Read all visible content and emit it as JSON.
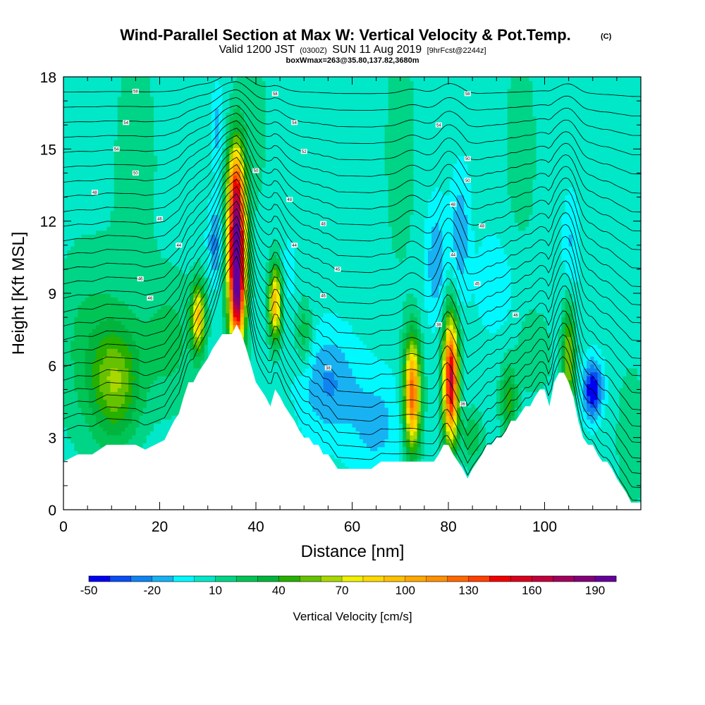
{
  "chart_data": {
    "type": "heatmap",
    "title": "Wind-Parallel Section at Max W: Vertical Velocity & Pot.Temp.",
    "title_suffix": "(C)",
    "subtitle_a": "Valid 1200 JST",
    "subtitle_b": "(0300Z)",
    "subtitle_c": "SUN 11 Aug 2019",
    "subtitle_d": "[9hrFcst@2244z]",
    "subtitle_line3": "boxWmax=263@35.80,137.82,3680m",
    "xlabel": "Distance [nm]",
    "ylabel": "Height [Kft MSL]",
    "xlim": [
      0,
      120
    ],
    "ylim": [
      0,
      18
    ],
    "x_ticks": [
      0,
      20,
      40,
      60,
      80,
      100
    ],
    "y_ticks": [
      0,
      3,
      6,
      9,
      12,
      15,
      18
    ],
    "colorbar": {
      "label": "Vertical Velocity [cm/s]",
      "tick_labels": [
        "-50",
        "-20",
        "10",
        "40",
        "70",
        "100",
        "130",
        "160",
        "190"
      ],
      "tick_values": [
        -50,
        -20,
        10,
        40,
        70,
        100,
        130,
        160,
        190
      ],
      "bins": [
        -50,
        -40,
        -30,
        -20,
        -10,
        0,
        10,
        20,
        30,
        40,
        50,
        60,
        70,
        80,
        90,
        100,
        110,
        120,
        130,
        140,
        150,
        160,
        170,
        180,
        190,
        200
      ],
      "colors": [
        "#0000f0",
        "#0a4cf5",
        "#0f84f0",
        "#18b2f2",
        "#00f8ff",
        "#00e8c8",
        "#00d486",
        "#00c455",
        "#00b43d",
        "#26b000",
        "#66c200",
        "#a8d800",
        "#f0f000",
        "#ffd800",
        "#ffc000",
        "#ffa800",
        "#ff9000",
        "#ff6800",
        "#ff4000",
        "#f00000",
        "#d8001c",
        "#c0003c",
        "#a0005c",
        "#820078",
        "#64009a"
      ]
    },
    "terrain": {
      "x": [
        0,
        1,
        3,
        6,
        9,
        11,
        13,
        15,
        17,
        19,
        21,
        22,
        23,
        24,
        25,
        26,
        27,
        28,
        29,
        30,
        31,
        32,
        33,
        34,
        35,
        36,
        37,
        38,
        39,
        40,
        41,
        42,
        43,
        44,
        45,
        46,
        47,
        48,
        49,
        50,
        51,
        52,
        53,
        54,
        55,
        56,
        57,
        58,
        60,
        62,
        64,
        66,
        68,
        70,
        72,
        74,
        76,
        77,
        78,
        79,
        80,
        81,
        82,
        83,
        84,
        85,
        86,
        87,
        88,
        89,
        90,
        91,
        92,
        93,
        94,
        95,
        96,
        97,
        98,
        99,
        100,
        101,
        102,
        103,
        104,
        105,
        106,
        107,
        108,
        109,
        110,
        111,
        112,
        113,
        114,
        115,
        116,
        117,
        118,
        120
      ],
      "height": [
        2.0,
        2.1,
        2.3,
        2.3,
        2.7,
        2.7,
        2.7,
        2.7,
        2.5,
        2.7,
        2.9,
        3.3,
        3.7,
        4.0,
        4.7,
        5.3,
        5.3,
        5.7,
        6.0,
        6.3,
        6.7,
        7.0,
        7.3,
        7.3,
        7.3,
        7.7,
        7.3,
        6.7,
        6.0,
        5.3,
        5.0,
        4.7,
        4.3,
        5.0,
        4.7,
        4.3,
        4.0,
        3.7,
        3.3,
        3.0,
        3.0,
        2.7,
        2.7,
        2.3,
        2.3,
        2.0,
        1.7,
        1.7,
        1.7,
        1.7,
        1.7,
        2.0,
        2.0,
        2.0,
        2.0,
        2.0,
        2.0,
        2.0,
        2.3,
        2.7,
        2.7,
        2.3,
        2.0,
        1.7,
        1.3,
        1.7,
        2.0,
        2.3,
        2.7,
        2.7,
        3.0,
        3.0,
        3.3,
        3.7,
        3.7,
        4.0,
        4.3,
        4.3,
        4.7,
        5.0,
        5.0,
        4.3,
        5.3,
        5.7,
        5.7,
        5.3,
        4.7,
        3.7,
        3.0,
        2.7,
        2.7,
        2.3,
        2.0,
        2.0,
        1.7,
        1.3,
        1.0,
        0.7,
        0.3,
        0.3
      ]
    },
    "wind_cells": [
      {
        "x": 36,
        "z": 10.8,
        "sx": 1.3,
        "sz": 2.6,
        "w": 205
      },
      {
        "x": 36.2,
        "z": 8.6,
        "sx": 0.9,
        "sz": 1.0,
        "w": 40
      },
      {
        "x": 80.5,
        "z": 5.4,
        "sx": 1.1,
        "sz": 1.8,
        "w": 160
      },
      {
        "x": 72.5,
        "z": 4.8,
        "sx": 1.2,
        "sz": 1.6,
        "w": 125
      },
      {
        "x": 44,
        "z": 8.6,
        "sx": 0.9,
        "sz": 1.1,
        "w": 95
      },
      {
        "x": 28,
        "z": 8.0,
        "sx": 1.0,
        "sz": 1.0,
        "w": 85
      },
      {
        "x": 11,
        "z": 5.3,
        "sx": 3.6,
        "sz": 1.7,
        "w": 50
      },
      {
        "x": 105,
        "z": 6.3,
        "sx": 0.9,
        "sz": 1.6,
        "w": 60
      },
      {
        "x": 92.5,
        "z": 4.6,
        "sx": 1.2,
        "sz": 1.0,
        "w": 40
      },
      {
        "x": 85,
        "z": 3.0,
        "sx": 1.5,
        "sz": 0.8,
        "w": 25
      },
      {
        "x": 50,
        "z": 7.3,
        "sx": 1.3,
        "sz": 1.0,
        "w": 25
      },
      {
        "x": 35.5,
        "z": 13.7,
        "sx": 1.2,
        "sz": 1.0,
        "w": 30
      },
      {
        "x": 22,
        "z": 7.0,
        "sx": 4.0,
        "sz": 2.0,
        "w": 20
      },
      {
        "x": 98,
        "z": 6.5,
        "sx": 2.5,
        "sz": 1.2,
        "w": 15
      },
      {
        "x": 110,
        "z": 5.0,
        "sx": 1.4,
        "sz": 0.8,
        "w": -55
      },
      {
        "x": 55,
        "z": 5.3,
        "sx": 4.0,
        "sz": 1.5,
        "w": -25
      },
      {
        "x": 65,
        "z": 3.6,
        "sx": 4.0,
        "sz": 1.5,
        "w": -18
      },
      {
        "x": 77.5,
        "z": 10.3,
        "sx": 1.6,
        "sz": 1.7,
        "w": -22
      },
      {
        "x": 31.5,
        "z": 11.1,
        "sx": 1.0,
        "sz": 1.1,
        "w": -28
      },
      {
        "x": 82.5,
        "z": 11.5,
        "sx": 1.3,
        "sz": 1.8,
        "w": -22
      },
      {
        "x": 32,
        "z": 15.8,
        "sx": 0.8,
        "sz": 1.2,
        "w": -18
      },
      {
        "x": 105.5,
        "z": 11.0,
        "sx": 1.2,
        "sz": 1.5,
        "w": -15
      },
      {
        "x": 90,
        "z": 9.5,
        "sx": 3.0,
        "sz": 1.5,
        "w": -12
      },
      {
        "x": 47,
        "z": 10.0,
        "sx": 1.0,
        "sz": 1.0,
        "w": -10
      },
      {
        "x": 15,
        "z": 14.5,
        "sx": 3.5,
        "sz": 4.0,
        "w": 12
      },
      {
        "x": 70,
        "z": 15.0,
        "sx": 2.5,
        "sz": 4.0,
        "w": 12
      },
      {
        "x": 95,
        "z": 15.0,
        "sx": 3.0,
        "sz": 4.0,
        "w": 10
      },
      {
        "x": 40,
        "z": 16.0,
        "sx": 2.0,
        "sz": 3.0,
        "w": 10
      },
      {
        "x": 5,
        "z": 7.0,
        "sx": 5.0,
        "sz": 3.0,
        "w": 18
      },
      {
        "x": 118,
        "z": 3.0,
        "sx": 2.5,
        "sz": 2.5,
        "w": 12
      }
    ],
    "theta_contour_labels": [
      {
        "x": 15,
        "y": 17.4,
        "text": "58"
      },
      {
        "x": 44,
        "y": 17.3,
        "text": "58"
      },
      {
        "x": 84,
        "y": 17.3,
        "text": "58"
      },
      {
        "x": 13,
        "y": 16.1,
        "text": "54"
      },
      {
        "x": 48,
        "y": 16.1,
        "text": "54"
      },
      {
        "x": 78,
        "y": 16.0,
        "text": "54"
      },
      {
        "x": 11,
        "y": 15.0,
        "text": "54"
      },
      {
        "x": 50,
        "y": 14.9,
        "text": "52"
      },
      {
        "x": 84,
        "y": 14.6,
        "text": "50"
      },
      {
        "x": 15,
        "y": 14.0,
        "text": "50"
      },
      {
        "x": 40,
        "y": 14.1,
        "text": "50"
      },
      {
        "x": 84,
        "y": 13.7,
        "text": "50"
      },
      {
        "x": 6.5,
        "y": 13.2,
        "text": "48"
      },
      {
        "x": 47,
        "y": 12.9,
        "text": "48"
      },
      {
        "x": 81,
        "y": 12.7,
        "text": "48"
      },
      {
        "x": 20,
        "y": 12.1,
        "text": "46"
      },
      {
        "x": 54,
        "y": 11.9,
        "text": "48"
      },
      {
        "x": 87,
        "y": 11.8,
        "text": "48"
      },
      {
        "x": 24,
        "y": 11.0,
        "text": "44"
      },
      {
        "x": 48,
        "y": 11.0,
        "text": "44"
      },
      {
        "x": 81,
        "y": 10.6,
        "text": "44"
      },
      {
        "x": 16,
        "y": 9.6,
        "text": "46"
      },
      {
        "x": 57,
        "y": 10.0,
        "text": "45"
      },
      {
        "x": 86,
        "y": 9.4,
        "text": "45"
      },
      {
        "x": 18,
        "y": 8.8,
        "text": "46"
      },
      {
        "x": 54,
        "y": 8.9,
        "text": "46"
      },
      {
        "x": 94,
        "y": 8.1,
        "text": "46"
      },
      {
        "x": 78,
        "y": 7.7,
        "text": "38"
      },
      {
        "x": 55,
        "y": 5.9,
        "text": "38"
      },
      {
        "x": 83,
        "y": 4.4,
        "text": "36"
      }
    ]
  }
}
